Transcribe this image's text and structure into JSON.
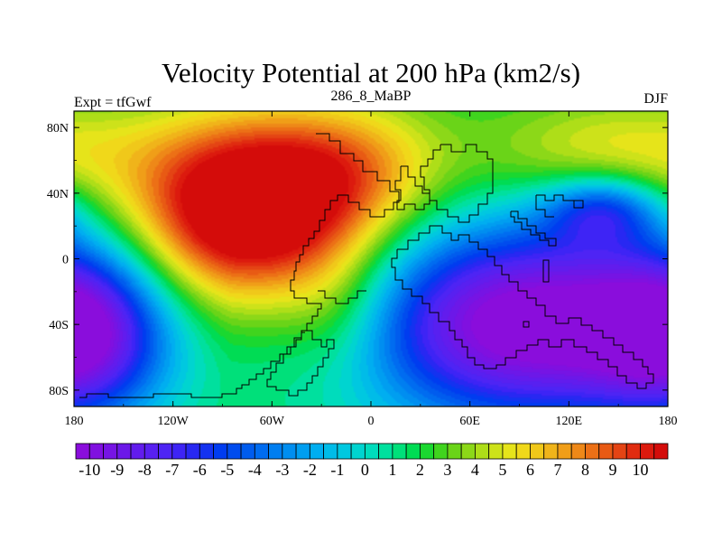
{
  "chart_data": {
    "type": "heatmap",
    "title": "Velocity Potential at 200 hPa (km2/s)",
    "left_label": "Expt = tfGwf",
    "center_label": "286_8_MaBP",
    "right_label": "DJF",
    "xlim": [
      -180,
      180
    ],
    "ylim": [
      -90,
      90
    ],
    "x_ticks": [
      {
        "value": -180,
        "label": "180"
      },
      {
        "value": -120,
        "label": "120W"
      },
      {
        "value": -60,
        "label": "60W"
      },
      {
        "value": 0,
        "label": "0"
      },
      {
        "value": 60,
        "label": "60E"
      },
      {
        "value": 120,
        "label": "120E"
      },
      {
        "value": 180,
        "label": "180"
      }
    ],
    "y_ticks": [
      {
        "value": 80,
        "label": "80N"
      },
      {
        "value": 40,
        "label": "40N"
      },
      {
        "value": 0,
        "label": "0"
      },
      {
        "value": -40,
        "label": "40S"
      },
      {
        "value": -80,
        "label": "80S"
      }
    ],
    "colorbar": {
      "min": -10.5,
      "max": 10.5,
      "step": 0.5,
      "tick_labels": [
        "-10",
        "-9",
        "-8",
        "-7",
        "-6",
        "-5",
        "-4",
        "-3",
        "-2",
        "-1",
        "0",
        "1",
        "2",
        "3",
        "4",
        "5",
        "6",
        "7",
        "8",
        "9",
        "10"
      ],
      "colors": [
        "#8a0ddc",
        "#8010e0",
        "#7614e4",
        "#6c18e8",
        "#621ced",
        "#5820f0",
        "#4e24f4",
        "#3e24f5",
        "#2828f2",
        "#1432f0",
        "#003cf0",
        "#004cee",
        "#005cee",
        "#006cf0",
        "#007ef0",
        "#008ef0",
        "#009ef0",
        "#00aef0",
        "#00bce8",
        "#00c8e0",
        "#00d4d0",
        "#00dcbc",
        "#00e09e",
        "#00e07a",
        "#00dc54",
        "#1ad830",
        "#40d41e",
        "#6ad418",
        "#8cd818",
        "#aede18",
        "#cde21a",
        "#e6e41a",
        "#f0d81a",
        "#f0c81a",
        "#f0b41a",
        "#f09e18",
        "#ee8818",
        "#ec7016",
        "#e85a14",
        "#e44414",
        "#e02c10",
        "#dc1a0e",
        "#d40c0a"
      ]
    },
    "field_description": "Velocity potential anomaly; maximum (~10) centred near 80W 35N, minimum (~-10) over the Indian Ocean / southern mid-latitudes"
  }
}
